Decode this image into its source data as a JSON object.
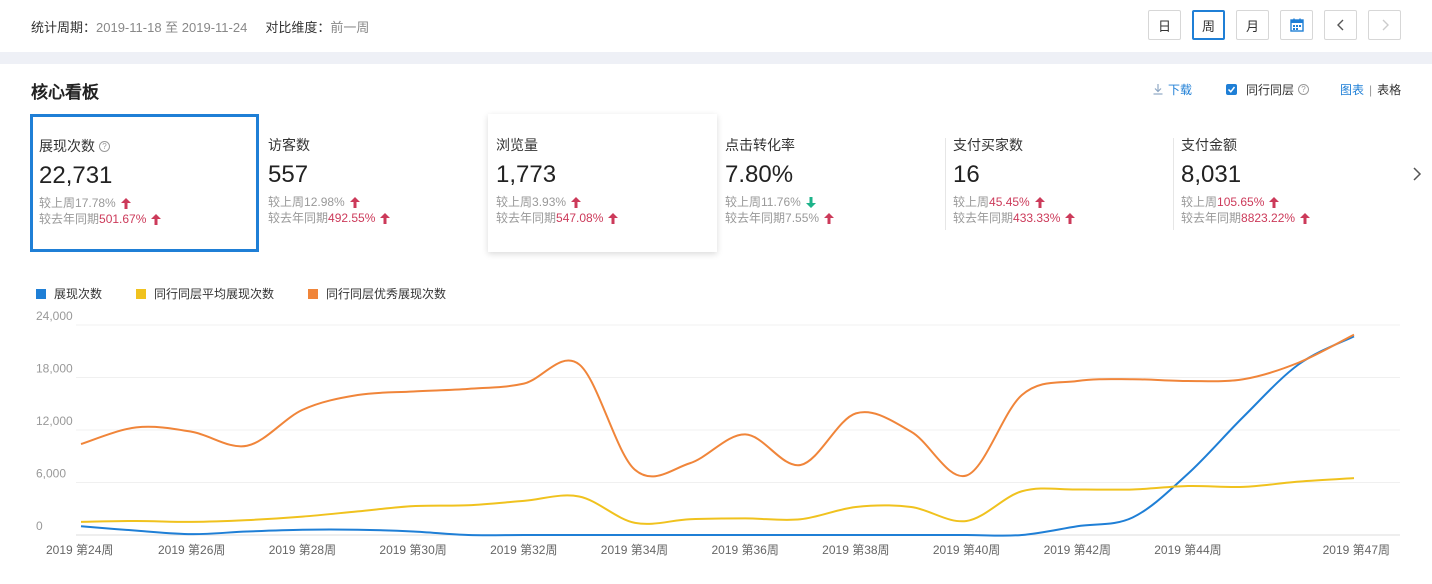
{
  "header": {
    "period_label": "统计周期：",
    "period_value": "2019-11-18 至 2019-11-24",
    "compare_label": "对比维度：",
    "compare_value": "前一周",
    "ranges": [
      "日",
      "周",
      "月"
    ],
    "active_range": "周"
  },
  "board": {
    "title": "核心看板",
    "download_label": "下载",
    "peer_label": "同行同层",
    "view_chart": "图表",
    "view_table": "表格"
  },
  "metrics": [
    {
      "label": "展现次数",
      "value": "22,731",
      "week_label": "较上周",
      "week_pct": "17.78%",
      "week_dir": "up",
      "year_label": "较去年同期",
      "year_pct": "501.67%",
      "year_dir": "up"
    },
    {
      "label": "访客数",
      "value": "557",
      "week_label": "较上周",
      "week_pct": "12.98%",
      "week_dir": "up",
      "year_label": "较去年同期",
      "year_pct": "492.55%",
      "year_dir": "up"
    },
    {
      "label": "浏览量",
      "value": "1,773",
      "week_label": "较上周",
      "week_pct": "3.93%",
      "week_dir": "up",
      "year_label": "较去年同期",
      "year_pct": "547.08%",
      "year_dir": "up"
    },
    {
      "label": "点击转化率",
      "value": "7.80%",
      "week_label": "较上周",
      "week_pct": "11.76%",
      "week_dir": "down",
      "year_label": "较去年同期",
      "year_pct": "7.55%",
      "year_dir": "up"
    },
    {
      "label": "支付买家数",
      "value": "16",
      "week_label": "较上周",
      "week_pct": "45.45%",
      "week_dir": "up",
      "year_label": "较去年同期",
      "year_pct": "433.33%",
      "year_dir": "up"
    },
    {
      "label": "支付金额",
      "value": "8,031",
      "week_label": "较上周",
      "week_pct": "105.65%",
      "week_dir": "up",
      "year_label": "较去年同期",
      "year_pct": "8823.22%",
      "year_dir": "up"
    }
  ],
  "colors": {
    "accent": "#1f7fd6",
    "up": "#cc3a5a",
    "down": "#1db38a"
  },
  "chart_data": {
    "type": "line",
    "x": [
      "2019 第24周",
      "2019 第25周",
      "2019 第26周",
      "2019 第27周",
      "2019 第28周",
      "2019 第29周",
      "2019 第30周",
      "2019 第31周",
      "2019 第32周",
      "2019 第33周",
      "2019 第34周",
      "2019 第35周",
      "2019 第36周",
      "2019 第37周",
      "2019 第38周",
      "2019 第39周",
      "2019 第40周",
      "2019 第41周",
      "2019 第42周",
      "2019 第43周",
      "2019 第44周",
      "2019 第45周",
      "2019 第46周",
      "2019 第47周"
    ],
    "tick_labels": [
      "2019 第24周",
      "2019 第26周",
      "2019 第28周",
      "2019 第30周",
      "2019 第32周",
      "2019 第34周",
      "2019 第36周",
      "2019 第38周",
      "2019 第40周",
      "2019 第42周",
      "2019 第44周",
      "2019 第47周"
    ],
    "yticks": [
      0,
      6000,
      12000,
      18000,
      24000
    ],
    "ylim": [
      0,
      24000
    ],
    "legend_position": "top-left",
    "grid": true,
    "series": [
      {
        "name": "展现次数",
        "color": "#1f7fd6",
        "values": [
          1000,
          500,
          100,
          400,
          600,
          600,
          400,
          0,
          0,
          0,
          0,
          0,
          0,
          0,
          0,
          0,
          0,
          0,
          1000,
          2000,
          7000,
          13500,
          19500,
          22700
        ]
      },
      {
        "name": "同行同层平均展现次数",
        "color": "#f0c21e",
        "values": [
          1500,
          1600,
          1500,
          1700,
          2100,
          2700,
          3300,
          3400,
          3900,
          4400,
          1400,
          1800,
          1900,
          1800,
          3200,
          3200,
          1600,
          5000,
          5200,
          5200,
          5600,
          5500,
          6100,
          6500
        ]
      },
      {
        "name": "同行同层优秀展现次数",
        "color": "#f0853a",
        "values": [
          10400,
          12300,
          11800,
          10200,
          14300,
          16000,
          16400,
          16700,
          17300,
          19500,
          7500,
          8200,
          11500,
          8000,
          13900,
          11800,
          6800,
          16000,
          17600,
          17800,
          17600,
          17800,
          19700,
          22900
        ]
      }
    ]
  }
}
